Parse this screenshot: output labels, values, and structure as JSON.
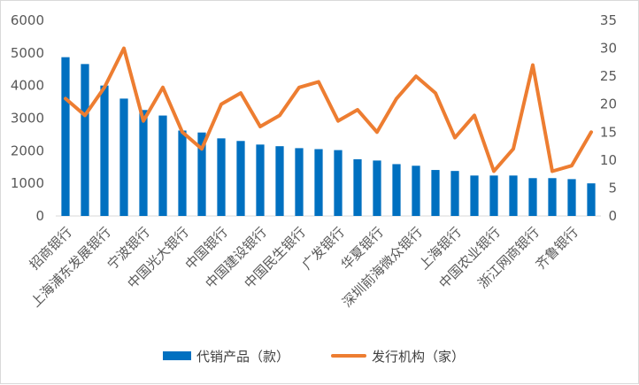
{
  "chart_data": {
    "type": "bar",
    "categories": [
      "招商银行",
      "",
      "上海浦东发展银行",
      "",
      "宁波银行",
      "",
      "中国光大银行",
      "",
      "中国银行",
      "",
      "中国建设银行",
      "",
      "中国民生银行",
      "",
      "广发银行",
      "",
      "华夏银行",
      "",
      "深圳前海微众银行",
      "",
      "上海银行",
      "",
      "中国农业银行",
      "",
      "浙江网商银行",
      "",
      "齐鲁银行",
      ""
    ],
    "series": [
      {
        "name": "代销产品（款）",
        "type": "bar",
        "axis": "left",
        "color": "#0070c0",
        "values": [
          4870,
          4660,
          4000,
          3600,
          3250,
          3080,
          2620,
          2560,
          2380,
          2300,
          2190,
          2140,
          2080,
          2050,
          2020,
          1740,
          1700,
          1590,
          1540,
          1410,
          1380,
          1240,
          1240,
          1240,
          1160,
          1160,
          1130,
          1000
        ]
      },
      {
        "name": "发行机构（家）",
        "type": "line",
        "axis": "right",
        "color": "#ed7d31",
        "values": [
          21,
          18,
          23,
          30,
          17,
          23,
          15,
          12,
          20,
          22,
          16,
          18,
          23,
          24,
          17,
          19,
          15,
          21,
          25,
          22,
          14,
          18,
          8,
          12,
          27,
          8,
          9,
          15
        ]
      }
    ],
    "y_left": {
      "min": 0,
      "max": 6000,
      "ticks": [
        0,
        1000,
        2000,
        3000,
        4000,
        5000,
        6000
      ]
    },
    "y_right": {
      "min": 0,
      "max": 35,
      "ticks": [
        0,
        5,
        10,
        15,
        20,
        25,
        30,
        35
      ]
    },
    "grid": false,
    "legend": "bottom"
  },
  "legend": {
    "bar_label": "代销产品（款）",
    "line_label": "发行机构（家）"
  },
  "colors": {
    "bar": "#0070c0",
    "line": "#ed7d31",
    "axis_text": "#595959"
  }
}
